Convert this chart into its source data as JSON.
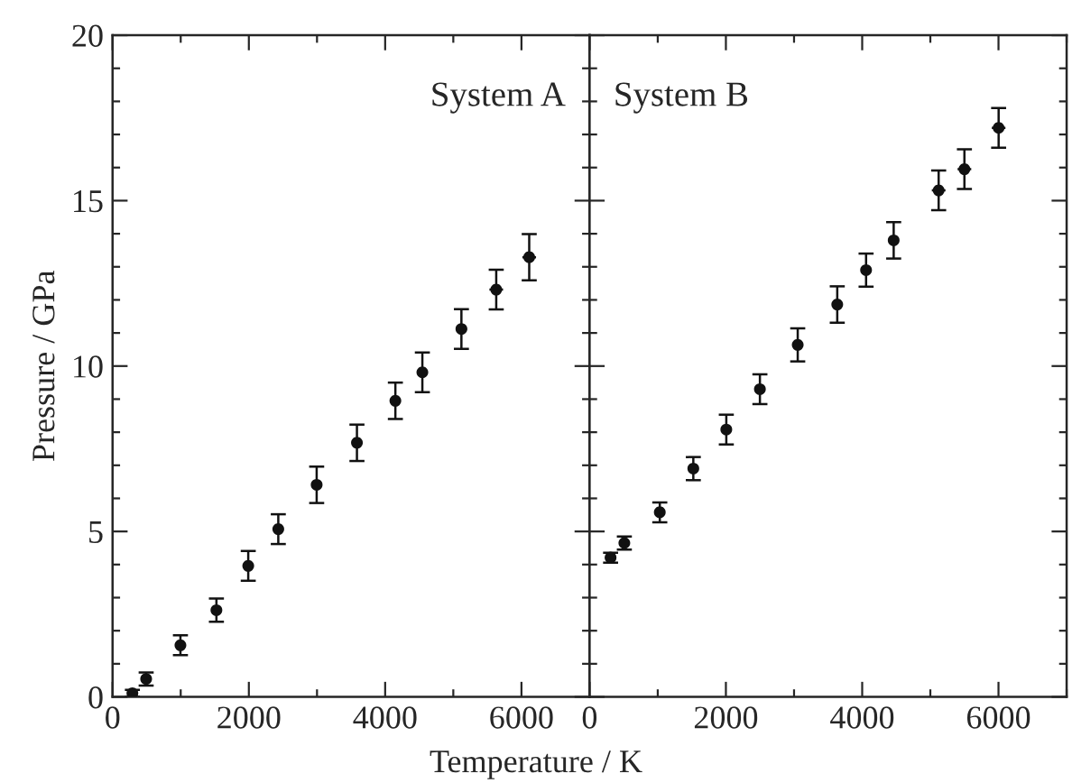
{
  "chart_data": [
    {
      "type": "scatter",
      "title": "System A",
      "xlabel": "Temperature / K",
      "ylabel": "Pressure / GPa",
      "x": [
        291,
        493,
        996,
        1524,
        1991,
        2432,
        2995,
        3586,
        4150,
        4546,
        5119,
        5630,
        6114
      ],
      "series": [
        {
          "color": "#111111",
          "values": [
            0.11,
            0.54,
            1.56,
            2.62,
            3.96,
            5.07,
            6.41,
            7.68,
            8.95,
            9.81,
            11.12,
            12.31,
            13.29
          ],
          "errors": [
            0.1,
            0.2,
            0.3,
            0.35,
            0.45,
            0.45,
            0.55,
            0.55,
            0.55,
            0.6,
            0.6,
            0.6,
            0.7
          ],
          "xerrors": [
            null,
            null,
            null,
            null,
            null,
            null,
            null,
            null,
            70,
            70,
            80,
            100,
            100
          ]
        }
      ],
      "xlim": [
        0,
        7000
      ],
      "xticks": [
        0,
        2000,
        4000,
        6000
      ],
      "ylim": [
        0,
        20
      ],
      "yticks": [
        0,
        5,
        10,
        15,
        20
      ],
      "marker": "circle",
      "grid": false
    },
    {
      "type": "scatter",
      "title": "System B",
      "x": [
        308,
        510,
        1030,
        1522,
        2006,
        2499,
        3054,
        3634,
        4057,
        4462,
        5122,
        5500,
        6002
      ],
      "series": [
        {
          "color": "#111111",
          "values": [
            4.21,
            4.65,
            5.58,
            6.9,
            8.08,
            9.3,
            10.64,
            11.86,
            12.9,
            13.8,
            15.31,
            15.95,
            17.2
          ],
          "errors": [
            0.15,
            0.2,
            0.3,
            0.35,
            0.45,
            0.45,
            0.5,
            0.55,
            0.5,
            0.55,
            0.6,
            0.6,
            0.6
          ],
          "xerrors": [
            80,
            null,
            null,
            null,
            null,
            null,
            null,
            null,
            null,
            70,
            100,
            100,
            100
          ]
        }
      ],
      "xlim": [
        0,
        7000
      ],
      "xticks": [
        0,
        2000,
        4000,
        6000
      ],
      "ylim": [
        0,
        20
      ],
      "yticks": [
        0,
        5,
        10,
        15,
        20
      ],
      "tick_labels": "x",
      "marker": "circle",
      "grid": false
    }
  ]
}
